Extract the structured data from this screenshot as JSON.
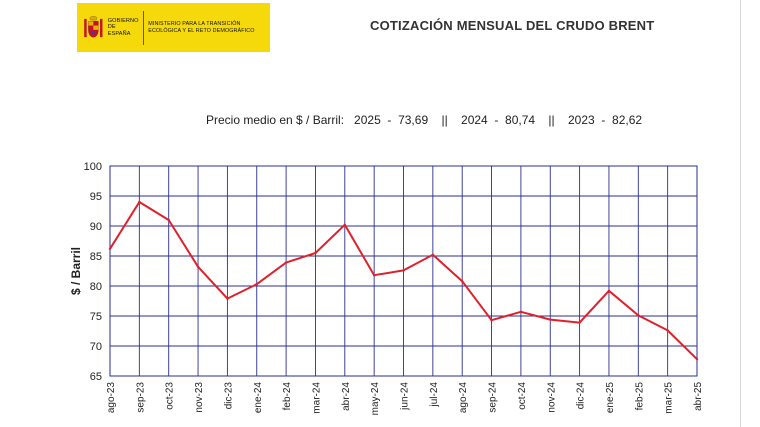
{
  "header": {
    "logo": {
      "gobierno": "GOBIERNO DE ESPAÑA",
      "ministerio": "MINISTERIO PARA LA TRANSICIÓN ECOLÓGICA Y EL RETO DEMOGRÁFICO",
      "brand_color": "#f6d90a"
    },
    "title": "COTIZACIÓN MENSUAL DEL CRUDO BRENT"
  },
  "subtitle": "Precio medio en $ / Barril:   2025  -  73,69    ||    2024  -  80,74    ||    2023  -  82,62",
  "chart_data": {
    "type": "line",
    "title": "",
    "xlabel": "",
    "ylabel": "$ / Barril",
    "ylim": [
      65,
      100
    ],
    "yticks": [
      65,
      70,
      75,
      80,
      85,
      90,
      95,
      100
    ],
    "grid": true,
    "line_color": "#e0202a",
    "grid_color": "#2b2f8f",
    "categories": [
      "ago-23",
      "sep-23",
      "oct-23",
      "nov-23",
      "dic-23",
      "ene-24",
      "feb-24",
      "mar-24",
      "abr-24",
      "may-24",
      "jun-24",
      "jul-24",
      "ago-24",
      "sep-24",
      "oct-24",
      "nov-24",
      "dic-24",
      "ene-25",
      "feb-25",
      "mar-25",
      "abr-25"
    ],
    "series": [
      {
        "name": "Brent",
        "values": [
          86.2,
          94.0,
          91.0,
          83.2,
          77.9,
          80.3,
          83.9,
          85.5,
          90.2,
          81.8,
          82.6,
          85.2,
          80.8,
          74.3,
          75.7,
          74.4,
          73.9,
          79.2,
          75.1,
          72.6,
          67.8
        ]
      }
    ]
  }
}
